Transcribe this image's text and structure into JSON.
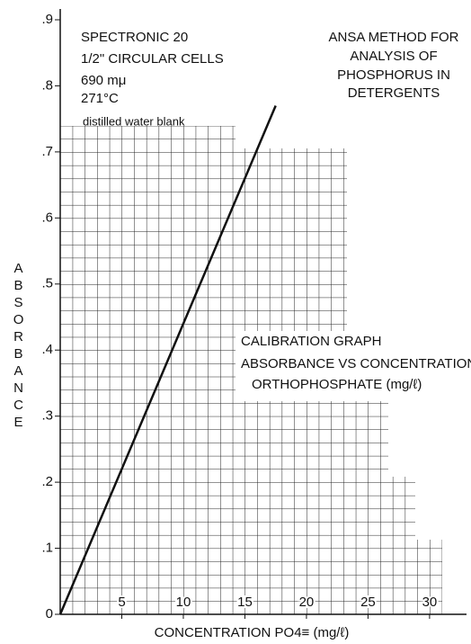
{
  "chart_data": {
    "type": "line",
    "xlabel": "CONCENTRATION PO4≡ (mg/ℓ)",
    "ylabel": "ABSORBANCE",
    "x": [
      0,
      17.5
    ],
    "series": [
      {
        "name": "",
        "color": "#111111",
        "values": [
          0,
          0.77
        ]
      }
    ],
    "xlim": [
      0,
      33
    ],
    "ylim": [
      0,
      0.9
    ],
    "xticks": [
      5,
      10,
      15,
      20,
      25,
      30
    ],
    "yticks": [
      0,
      {
        "value": 0.1,
        "label": ".1"
      },
      {
        "value": 0.2,
        "label": ".2"
      },
      {
        "value": 0.3,
        "label": ".3"
      },
      {
        "value": 0.4,
        "label": ".4"
      },
      {
        "value": 0.5,
        "label": ".5"
      },
      {
        "value": 0.6,
        "label": ".6"
      },
      {
        "value": 0.7,
        "label": ".7"
      },
      {
        "value": 0.8,
        "label": ".8"
      },
      {
        "value": 0.9,
        "label": ".9"
      }
    ],
    "grid": true,
    "annotations": [
      "SPECTRONIC 20",
      "1/2\" CIRCULAR CELLS",
      "690 mμ",
      "271°C",
      "distilled water blank",
      "ANSA METHOD FOR",
      "ANALYSIS OF",
      "PHOSPHORUS IN",
      "DETERGENTS",
      "CALIBRATION GRAPH",
      "ABSORBANCE VS CONCENTRATION",
      "ORTHOPHOSPHATE (mg/ℓ)"
    ]
  }
}
